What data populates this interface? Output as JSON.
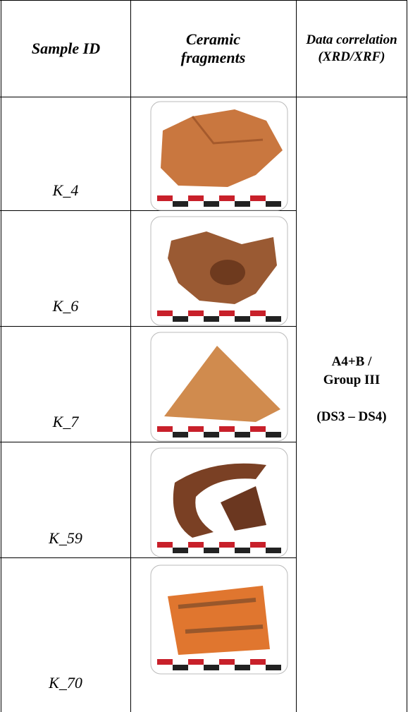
{
  "table": {
    "header": [
      "Sample ID",
      "Ceramic fragments",
      "Data correlation (XRD/XRF)"
    ],
    "rows": [
      {
        "id": "K_4"
      },
      {
        "id": "K_6"
      },
      {
        "id": "K_7"
      },
      {
        "id": "K_59"
      },
      {
        "id": "K_70"
      }
    ],
    "correlation": [
      "A4+B /",
      "Group III",
      "(DS3 – DS4)"
    ]
  }
}
